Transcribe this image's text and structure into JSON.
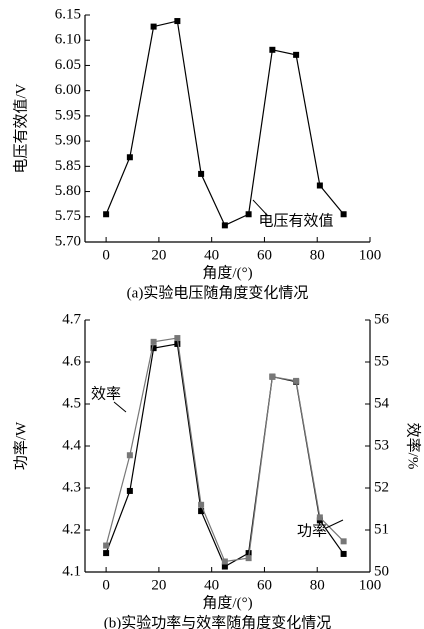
{
  "chart_data": [
    {
      "type": "line",
      "y_label": "电压有效值/V",
      "x_label": "角度/(°)",
      "caption": "(a)实验电压随角度变化情况",
      "x": [
        0,
        9,
        18,
        27,
        36,
        45,
        54,
        63,
        72,
        81,
        90
      ],
      "series": [
        {
          "name": "电压有效值",
          "color": "#000000",
          "values": [
            5.755,
            5.868,
            6.127,
            6.138,
            5.835,
            5.733,
            5.755,
            6.081,
            6.071,
            5.812,
            5.755
          ]
        }
      ],
      "xlim": [
        -8,
        100
      ],
      "xticks": [
        0,
        20,
        40,
        60,
        80,
        100
      ],
      "ylim": [
        5.7,
        6.15
      ],
      "yticks": [
        {
          "value": 5.7,
          "label": "5.70"
        },
        5.75,
        {
          "value": 5.8,
          "label": "5.80"
        },
        5.85,
        {
          "value": 5.9,
          "label": "5.90"
        },
        5.95,
        {
          "value": 6,
          "label": "6.00"
        },
        6.05,
        {
          "value": 6.1,
          "label": "6.10"
        },
        6.15
      ]
    },
    {
      "type": "line",
      "y_label": "功率/W",
      "y2_label": "效率/%",
      "x_label": "角度/(°)",
      "caption": "(b)实验功率与效率随角度变化情况",
      "x": [
        0,
        9,
        18,
        27,
        36,
        45,
        54,
        63,
        72,
        81,
        90
      ],
      "series": [
        {
          "name": "功率",
          "color": "#000000",
          "values": [
            4.145,
            4.293,
            4.633,
            4.643,
            4.245,
            4.113,
            4.145,
            4.565,
            4.553,
            4.223,
            4.143
          ]
        },
        {
          "name": "效率",
          "color": "#777777",
          "axis": "y2",
          "values": [
            50.63,
            52.78,
            55.48,
            55.57,
            51.6,
            50.25,
            50.33,
            54.65,
            54.55,
            51.3,
            50.73
          ]
        }
      ],
      "xlim": [
        -8,
        100
      ],
      "xticks": [
        0,
        20,
        40,
        60,
        80,
        100
      ],
      "ylim": [
        4.1,
        4.7
      ],
      "yticks": [
        4.1,
        4.2,
        4.3,
        4.4,
        4.5,
        4.6,
        4.7
      ],
      "y2lim": [
        50,
        56
      ],
      "y2ticks": [
        50,
        51,
        52,
        53,
        54,
        55,
        56
      ]
    }
  ]
}
